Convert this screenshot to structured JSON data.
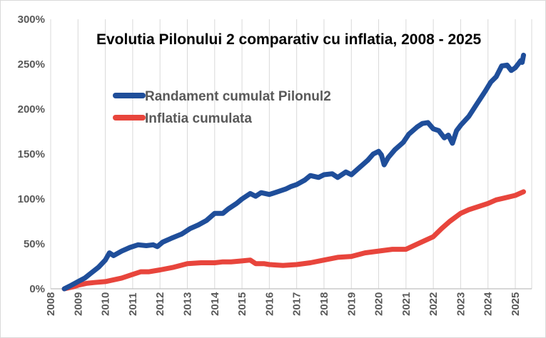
{
  "chart_data": {
    "type": "line",
    "title": "Evolutia Pilonului 2 comparativ cu inflatia, 2008 - 2025",
    "xlabel": "",
    "ylabel": "",
    "ylim": [
      0,
      300
    ],
    "xlim": [
      2008,
      2025.6
    ],
    "y_ticks": [
      "0%",
      "50%",
      "100%",
      "150%",
      "200%",
      "250%",
      "300%"
    ],
    "y_tick_values": [
      0,
      50,
      100,
      150,
      200,
      250,
      300
    ],
    "x_ticks": [
      "2008",
      "2009",
      "2010",
      "2011",
      "2012",
      "2013",
      "2014",
      "2015",
      "2016",
      "2017",
      "2018",
      "2019",
      "2020",
      "2021",
      "2022",
      "2023",
      "2024",
      "2025"
    ],
    "x_tick_values": [
      2008,
      2009,
      2010,
      2011,
      2012,
      2013,
      2014,
      2015,
      2016,
      2017,
      2018,
      2019,
      2020,
      2021,
      2022,
      2023,
      2024,
      2025
    ],
    "grid": "vertical",
    "legend": "upper-left inside",
    "series": [
      {
        "name": "Randament cumulat Pilonul2",
        "color": "#1f4e9a",
        "points": [
          [
            2008.5,
            0
          ],
          [
            2008.7,
            3
          ],
          [
            2009.0,
            8
          ],
          [
            2009.25,
            12
          ],
          [
            2009.5,
            18
          ],
          [
            2009.75,
            24
          ],
          [
            2010.0,
            32
          ],
          [
            2010.15,
            40
          ],
          [
            2010.3,
            37
          ],
          [
            2010.6,
            42
          ],
          [
            2010.9,
            46
          ],
          [
            2011.2,
            49
          ],
          [
            2011.5,
            48
          ],
          [
            2011.75,
            49
          ],
          [
            2011.9,
            47
          ],
          [
            2012.1,
            52
          ],
          [
            2012.4,
            56
          ],
          [
            2012.8,
            61
          ],
          [
            2013.1,
            67
          ],
          [
            2013.4,
            71
          ],
          [
            2013.7,
            76
          ],
          [
            2014.0,
            84
          ],
          [
            2014.3,
            84
          ],
          [
            2014.5,
            89
          ],
          [
            2014.8,
            95
          ],
          [
            2015.0,
            100
          ],
          [
            2015.3,
            106
          ],
          [
            2015.5,
            103
          ],
          [
            2015.7,
            107
          ],
          [
            2016.0,
            105
          ],
          [
            2016.3,
            108
          ],
          [
            2016.6,
            111
          ],
          [
            2016.8,
            114
          ],
          [
            2017.0,
            116
          ],
          [
            2017.3,
            121
          ],
          [
            2017.5,
            126
          ],
          [
            2017.8,
            124
          ],
          [
            2018.0,
            127
          ],
          [
            2018.3,
            128
          ],
          [
            2018.5,
            124
          ],
          [
            2018.8,
            130
          ],
          [
            2019.0,
            127
          ],
          [
            2019.3,
            135
          ],
          [
            2019.6,
            143
          ],
          [
            2019.8,
            150
          ],
          [
            2020.0,
            153
          ],
          [
            2020.1,
            149
          ],
          [
            2020.2,
            138
          ],
          [
            2020.35,
            146
          ],
          [
            2020.6,
            155
          ],
          [
            2020.9,
            163
          ],
          [
            2021.1,
            172
          ],
          [
            2021.4,
            180
          ],
          [
            2021.6,
            184
          ],
          [
            2021.8,
            185
          ],
          [
            2022.0,
            178
          ],
          [
            2022.2,
            176
          ],
          [
            2022.4,
            168
          ],
          [
            2022.55,
            171
          ],
          [
            2022.7,
            162
          ],
          [
            2022.85,
            176
          ],
          [
            2023.0,
            182
          ],
          [
            2023.3,
            192
          ],
          [
            2023.6,
            206
          ],
          [
            2023.9,
            220
          ],
          [
            2024.1,
            230
          ],
          [
            2024.3,
            236
          ],
          [
            2024.5,
            248
          ],
          [
            2024.7,
            249
          ],
          [
            2024.85,
            243
          ],
          [
            2025.0,
            246
          ],
          [
            2025.1,
            250
          ],
          [
            2025.2,
            254
          ],
          [
            2025.25,
            252
          ],
          [
            2025.3,
            260
          ]
        ]
      },
      {
        "name": "Inflatia cumulata",
        "color": "#e8453c",
        "points": [
          [
            2008.5,
            0
          ],
          [
            2008.8,
            2
          ],
          [
            2009.0,
            4
          ],
          [
            2009.3,
            6
          ],
          [
            2009.6,
            7
          ],
          [
            2010.0,
            8
          ],
          [
            2010.3,
            10
          ],
          [
            2010.6,
            12
          ],
          [
            2011.0,
            16
          ],
          [
            2011.3,
            19
          ],
          [
            2011.6,
            19
          ],
          [
            2012.0,
            21
          ],
          [
            2012.5,
            24
          ],
          [
            2013.0,
            28
          ],
          [
            2013.5,
            29
          ],
          [
            2014.0,
            29
          ],
          [
            2014.3,
            30
          ],
          [
            2014.6,
            30
          ],
          [
            2015.0,
            31
          ],
          [
            2015.3,
            32
          ],
          [
            2015.5,
            28
          ],
          [
            2015.8,
            28
          ],
          [
            2016.0,
            27
          ],
          [
            2016.5,
            26
          ],
          [
            2017.0,
            27
          ],
          [
            2017.5,
            29
          ],
          [
            2018.0,
            32
          ],
          [
            2018.5,
            35
          ],
          [
            2019.0,
            36
          ],
          [
            2019.5,
            40
          ],
          [
            2020.0,
            42
          ],
          [
            2020.5,
            44
          ],
          [
            2021.0,
            44
          ],
          [
            2021.5,
            51
          ],
          [
            2022.0,
            58
          ],
          [
            2022.3,
            67
          ],
          [
            2022.6,
            75
          ],
          [
            2023.0,
            84
          ],
          [
            2023.3,
            88
          ],
          [
            2023.6,
            91
          ],
          [
            2024.0,
            95
          ],
          [
            2024.3,
            99
          ],
          [
            2024.6,
            101
          ],
          [
            2025.0,
            104
          ],
          [
            2025.3,
            108
          ]
        ]
      }
    ]
  }
}
